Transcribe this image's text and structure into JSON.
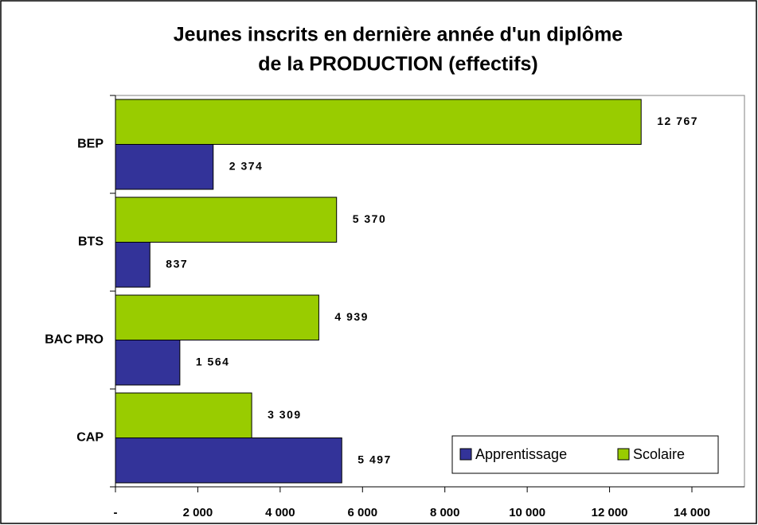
{
  "chart_data": {
    "type": "bar",
    "orientation": "horizontal",
    "title": "Jeunes inscrits en dernière année d'un diplôme",
    "subtitle": "de la PRODUCTION (effectifs)",
    "categories": [
      "BEP",
      "BTS",
      "BAC PRO",
      "CAP"
    ],
    "series": [
      {
        "name": "Apprentissage",
        "color": "#333399",
        "values": [
          2374,
          837,
          1564,
          5497
        ],
        "value_labels": [
          "2 374",
          "837",
          "1 564",
          "5 497"
        ]
      },
      {
        "name": "Scolaire",
        "color": "#99cc00",
        "values": [
          12767,
          5370,
          4939,
          3309
        ],
        "value_labels": [
          "12 767",
          "5 370",
          "4 939",
          "3 309"
        ]
      }
    ],
    "xlim": [
      0,
      14000
    ],
    "xticks": [
      {
        "value": 0,
        "label": "-"
      },
      {
        "value": 2000,
        "label": "2 000"
      },
      {
        "value": 4000,
        "label": "4 000"
      },
      {
        "value": 6000,
        "label": "6 000"
      },
      {
        "value": 8000,
        "label": "8 000"
      },
      {
        "value": 10000,
        "label": "10 000"
      },
      {
        "value": 12000,
        "label": "12 000"
      },
      {
        "value": 14000,
        "label": "14 000"
      }
    ],
    "legend": "lower right",
    "grid": false
  }
}
